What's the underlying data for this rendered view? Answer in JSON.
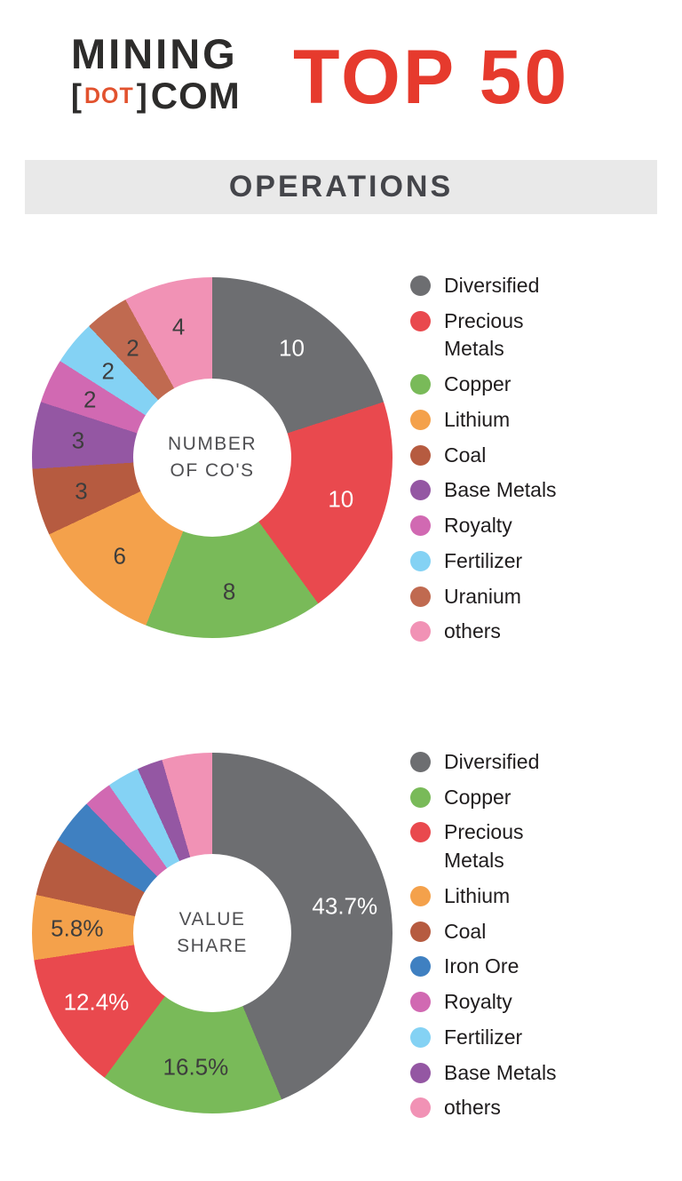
{
  "header": {
    "logo": {
      "line1": "MINING",
      "bracket_open": "[",
      "dot": "DOT",
      "bracket_close": "]",
      "com": "COM"
    },
    "title": "TOP 50",
    "title_color": "#e63a2d"
  },
  "section": {
    "title": "OPERATIONS"
  },
  "chart_data": [
    {
      "type": "pie",
      "donut": true,
      "title": "NUMBER OF CO'S",
      "center": {
        "line1": "NUMBER",
        "line2": "OF CO'S"
      },
      "total": 50,
      "legend_position": "right",
      "slices": [
        {
          "name": "Diversified",
          "value": 10,
          "label": "10",
          "color": "#6d6e71",
          "label_color": "#ffffff"
        },
        {
          "name": "Precious Metals",
          "value": 10,
          "label": "10",
          "color": "#e9494e",
          "label_color": "#ffffff"
        },
        {
          "name": "Copper",
          "value": 8,
          "label": "8",
          "color": "#79ba59",
          "label_color": "#3d3d3d"
        },
        {
          "name": "Lithium",
          "value": 6,
          "label": "6",
          "color": "#f4a14b",
          "label_color": "#3d3d3d"
        },
        {
          "name": "Coal",
          "value": 3,
          "label": "3",
          "color": "#b65b40",
          "label_color": "#3d3d3d"
        },
        {
          "name": "Base Metals",
          "value": 3,
          "label": "3",
          "color": "#9457a3",
          "label_color": "#3d3d3d"
        },
        {
          "name": "Royalty",
          "value": 2,
          "label": "2",
          "color": "#d169b2",
          "label_color": "#3d3d3d"
        },
        {
          "name": "Fertilizer",
          "value": 2,
          "label": "2",
          "color": "#84d2f4",
          "label_color": "#3d3d3d"
        },
        {
          "name": "Uranium",
          "value": 2,
          "label": "2",
          "color": "#c06a50",
          "label_color": "#3d3d3d"
        },
        {
          "name": "others",
          "value": 4,
          "label": "4",
          "color": "#f192b5",
          "label_color": "#3d3d3d"
        }
      ]
    },
    {
      "type": "pie",
      "donut": true,
      "title": "VALUE SHARE",
      "center": {
        "line1": "VALUE",
        "line2": "SHARE"
      },
      "unit": "%",
      "total": 100,
      "legend_position": "right",
      "slices": [
        {
          "name": "Diversified",
          "value": 43.7,
          "label": "43.7%",
          "color": "#6d6e71",
          "label_color": "#ffffff"
        },
        {
          "name": "Copper",
          "value": 16.5,
          "label": "16.5%",
          "color": "#79ba59",
          "label_color": "#3d3d3d"
        },
        {
          "name": "Precious Metals",
          "value": 12.4,
          "label": "12.4%",
          "color": "#e9494e",
          "label_color": "#ffffff"
        },
        {
          "name": "Lithium",
          "value": 5.8,
          "label": "5.8%",
          "color": "#f4a14b",
          "label_color": "#3d3d3d"
        },
        {
          "name": "Coal",
          "value": 5.2,
          "label": "",
          "color": "#b65b40"
        },
        {
          "name": "Iron Ore",
          "value": 4.1,
          "label": "",
          "color": "#3f80c1"
        },
        {
          "name": "Royalty",
          "value": 2.6,
          "label": "",
          "color": "#d169b2"
        },
        {
          "name": "Fertilizer",
          "value": 2.9,
          "label": "",
          "color": "#84d2f4"
        },
        {
          "name": "Base Metals",
          "value": 2.3,
          "label": "",
          "color": "#9457a3"
        },
        {
          "name": "others",
          "value": 4.5,
          "label": "",
          "color": "#f192b5"
        }
      ]
    }
  ]
}
